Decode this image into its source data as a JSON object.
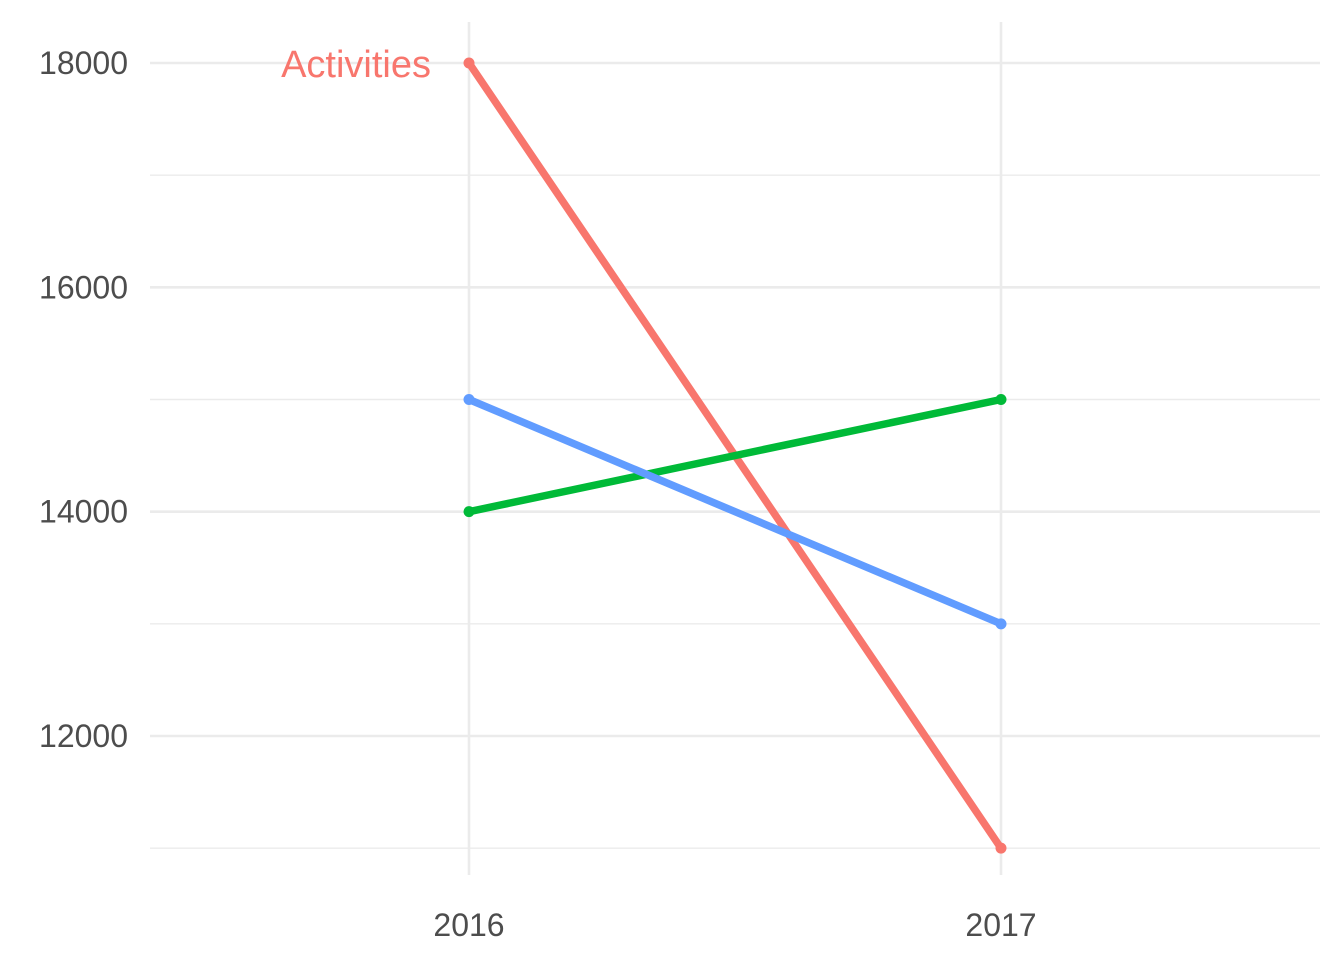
{
  "chart_data": {
    "type": "line",
    "x": [
      "2016",
      "2017"
    ],
    "x_ticks": [
      "2016",
      "2017"
    ],
    "y_ticks": [
      12000,
      14000,
      16000,
      18000
    ],
    "y_tick_labels": [
      "12000",
      "14000",
      "16000",
      "18000"
    ],
    "ylim": [
      10950,
      18350
    ],
    "grid": true,
    "series": [
      {
        "name": "Activities",
        "values": [
          18000,
          11000
        ],
        "color": "#F8766D",
        "label_shown": true
      },
      {
        "values": [
          14000,
          15000
        ],
        "color": "#00BA38",
        "label_shown": false
      },
      {
        "values": [
          15000,
          13000
        ],
        "color": "#619CFF",
        "label_shown": false
      }
    ]
  }
}
